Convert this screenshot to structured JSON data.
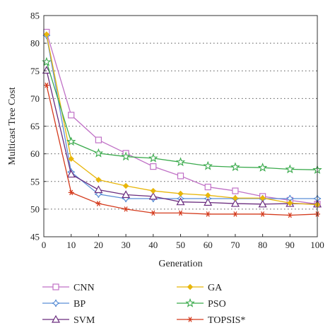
{
  "chart_data": {
    "type": "line",
    "xlabel": "Generation",
    "ylabel": "Multicast Tree Cost",
    "xlim": [
      0,
      100
    ],
    "ylim": [
      45,
      85
    ],
    "xticks": [
      0,
      10,
      20,
      30,
      40,
      50,
      60,
      70,
      80,
      90,
      100
    ],
    "yticks": [
      45,
      50,
      55,
      60,
      65,
      70,
      75,
      80,
      85
    ],
    "grid": "horizontal dotted",
    "legend_position": "bottom",
    "series": [
      {
        "name": "CNN",
        "color": "#c071c6",
        "marker": "square",
        "x": [
          1,
          10,
          20,
          30,
          40,
          50,
          60,
          70,
          80,
          90,
          100
        ],
        "values": [
          82.0,
          67.0,
          62.5,
          60.1,
          57.7,
          56.0,
          54.0,
          53.3,
          52.3,
          51.6,
          50.9
        ]
      },
      {
        "name": "BP",
        "color": "#5b8fd6",
        "marker": "diamond4",
        "x": [
          1,
          10,
          20,
          30,
          40,
          50,
          60,
          70,
          80,
          90,
          100
        ],
        "values": [
          81.4,
          56.7,
          52.7,
          51.9,
          51.9,
          51.9,
          51.9,
          51.9,
          51.9,
          51.9,
          51.9
        ]
      },
      {
        "name": "SVM",
        "color": "#6a2c7e",
        "marker": "triangle",
        "x": [
          1,
          10,
          20,
          30,
          40,
          50,
          60,
          70,
          80,
          90,
          100
        ],
        "values": [
          75.1,
          56.3,
          53.5,
          52.6,
          52.3,
          51.3,
          51.2,
          51.0,
          50.9,
          51.0,
          50.9
        ]
      },
      {
        "name": "GA",
        "color": "#e8b60b",
        "marker": "diamond",
        "x": [
          1,
          10,
          20,
          30,
          40,
          50,
          60,
          70,
          80,
          90,
          100
        ],
        "values": [
          81.6,
          59.1,
          55.3,
          54.2,
          53.3,
          52.8,
          52.5,
          52.0,
          52.0,
          51.1,
          50.8
        ]
      },
      {
        "name": "PSO",
        "color": "#3aaa4c",
        "marker": "star",
        "x": [
          1,
          10,
          20,
          30,
          40,
          50,
          60,
          70,
          80,
          90,
          100
        ],
        "values": [
          76.6,
          62.2,
          60.1,
          59.5,
          59.2,
          58.5,
          57.8,
          57.6,
          57.5,
          57.2,
          57.1
        ]
      },
      {
        "name": "TOPSIS*",
        "color": "#d43a1c",
        "marker": "asterisk",
        "x": [
          1,
          10,
          20,
          30,
          40,
          50,
          60,
          70,
          80,
          90,
          100
        ],
        "values": [
          72.4,
          53.0,
          51.0,
          50.0,
          49.3,
          49.3,
          49.1,
          49.1,
          49.1,
          48.9,
          49.1
        ]
      }
    ]
  }
}
